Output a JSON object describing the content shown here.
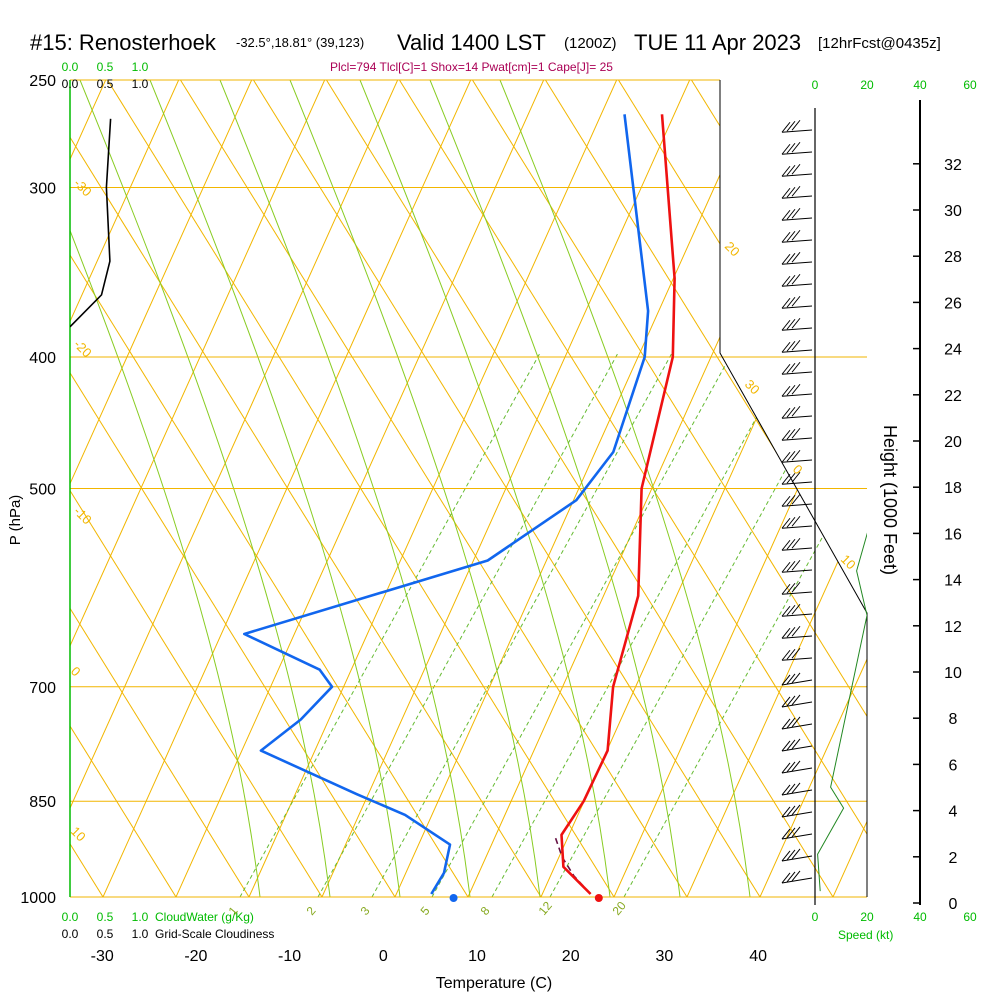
{
  "header": {
    "station": "#15: Renosterhoek",
    "coords": "-32.5°,18.81° (39,123)",
    "valid": "Valid 1400 LST",
    "zulu": "(1200Z)",
    "date": "TUE 11 Apr 2023",
    "fcst": "[12hrFcst@0435z]",
    "indices": "Plcl=794 Tlcl[C]=1 Shox=14 Pwat[cm]=1 Cape[J]= 25"
  },
  "colors": {
    "temperature": "#ee1111",
    "dewpoint": "#1166ee",
    "isobar": "#f2b600",
    "dry_adiabat": "#f2b600",
    "moist_adiabat": "#88cc22",
    "mixing_ratio": "#66bb33",
    "cloudwater": "#00bb00",
    "height_line": "#228822",
    "parcel": "#661144",
    "indices_text": "#aa0055"
  },
  "labels": {
    "ylabel": "P (hPa)",
    "xlabel": "Temperature (C)",
    "height_label": "Height (1000 Feet)",
    "speed_label": "Speed (kt)",
    "cloudwater_label": "CloudWater (g/Kg)",
    "cloudiness_label": "Grid-Scale Cloudiness",
    "cw_scale": [
      "0.0",
      "0.5",
      "1.0"
    ],
    "cloud_scale": [
      "0.0",
      "0.5",
      "1.0"
    ],
    "speed_scale": [
      "0",
      "20",
      "40",
      "60"
    ],
    "speed_scale_top_green": [
      "20",
      "60"
    ],
    "speed_scale_top_black": [
      "0",
      "40"
    ]
  },
  "chart_data": {
    "type": "line",
    "title": "#15: Renosterhoek",
    "xlabel": "Temperature (C)",
    "ylabel": "P (hPa)",
    "xlim": [
      -35,
      45
    ],
    "pressure_range": [
      250,
      1000
    ],
    "pressure_ticks": [
      250,
      300,
      400,
      500,
      700,
      850,
      1000
    ],
    "temperature_ticks": [
      -30,
      -20,
      -10,
      0,
      10,
      20,
      30,
      40
    ],
    "height_ticks_kft": [
      0,
      2,
      4,
      6,
      8,
      10,
      12,
      14,
      16,
      18,
      20,
      22,
      24,
      26,
      28,
      30,
      32
    ],
    "dry_adiabat_labels": [
      "-30",
      "-20",
      "-10",
      "0",
      "10",
      "20",
      "30",
      "0",
      "10",
      "20",
      "30"
    ],
    "mixing_ratio_labels": [
      "1",
      "2",
      "3",
      "5",
      "8",
      "12",
      "20"
    ],
    "series": [
      {
        "name": "Temperature",
        "points": [
          [
            -2,
            265
          ],
          [
            6,
            350
          ],
          [
            9,
            400
          ],
          [
            11,
            500
          ],
          [
            15,
            600
          ],
          [
            16,
            700
          ],
          [
            18,
            780
          ],
          [
            17.5,
            850
          ],
          [
            16.5,
            900
          ],
          [
            18,
            950
          ],
          [
            22,
            995
          ]
        ]
      },
      {
        "name": "Dewpoint",
        "points": [
          [
            -6,
            265
          ],
          [
            4.5,
            370
          ],
          [
            6,
            400
          ],
          [
            6.5,
            470
          ],
          [
            4.5,
            510
          ],
          [
            -2.5,
            565
          ],
          [
            -25.5,
            640
          ],
          [
            -16,
            680
          ],
          [
            -14,
            700
          ],
          [
            -16,
            740
          ],
          [
            -19,
            780
          ],
          [
            -7,
            840
          ],
          [
            -1,
            870
          ],
          [
            5,
            915
          ],
          [
            5.5,
            960
          ],
          [
            5,
            995
          ]
        ]
      }
    ],
    "parcel_path": [
      [
        16,
        905
      ],
      [
        17.5,
        935
      ],
      [
        19.5,
        965
      ],
      [
        22,
        995
      ]
    ],
    "surface_temperature": 23,
    "surface_dewpoint": 7.5,
    "cloudiness_profile": [
      [
        0.58,
        267
      ],
      [
        0.52,
        300
      ],
      [
        0.57,
        340
      ],
      [
        0.45,
        360
      ],
      [
        0.0,
        380
      ]
    ],
    "height_profile_speed": [
      [
        36,
        265
      ],
      [
        27,
        340
      ],
      [
        33,
        400
      ],
      [
        29,
        470
      ],
      [
        16,
        575
      ],
      [
        20,
        620
      ],
      [
        6,
        830
      ],
      [
        11,
        860
      ],
      [
        1,
        930
      ],
      [
        2,
        990
      ]
    ]
  }
}
